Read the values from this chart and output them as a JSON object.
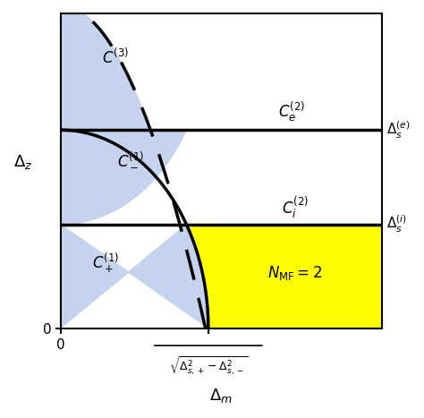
{
  "figsize": [
    4.74,
    4.67
  ],
  "dpi": 100,
  "xlim": [
    0,
    1.0
  ],
  "ylim": [
    0,
    1.0
  ],
  "Delta_i": 0.33,
  "Delta_e": 0.63,
  "Delta_m0": 0.46,
  "color_blue": "#c5d3ee",
  "color_yellow": "#ffff00",
  "label_Ce2": "$C_e^{(2)}$",
  "label_Ci2": "$C_i^{(2)}$",
  "label_C3": "$C^{(3)}$",
  "label_C1minus": "$C_-^{(1)}$",
  "label_C1plus": "$C_+^{(1)}$",
  "label_NMF": "$N_{\\mathrm{MF}}=2$",
  "label_Delta_e": "$\\Delta_s^{(e)}$",
  "label_Delta_i": "$\\Delta_s^{(i)}$",
  "label_xlabel_main": "$\\Delta_m$",
  "label_ylabel": "$\\Delta_z$",
  "label_sqrt": "$\\sqrt{\\Delta_{s,+}^2-\\Delta_{s,-}^2}$",
  "dash_k": 0.085,
  "dash_c": 0.22
}
